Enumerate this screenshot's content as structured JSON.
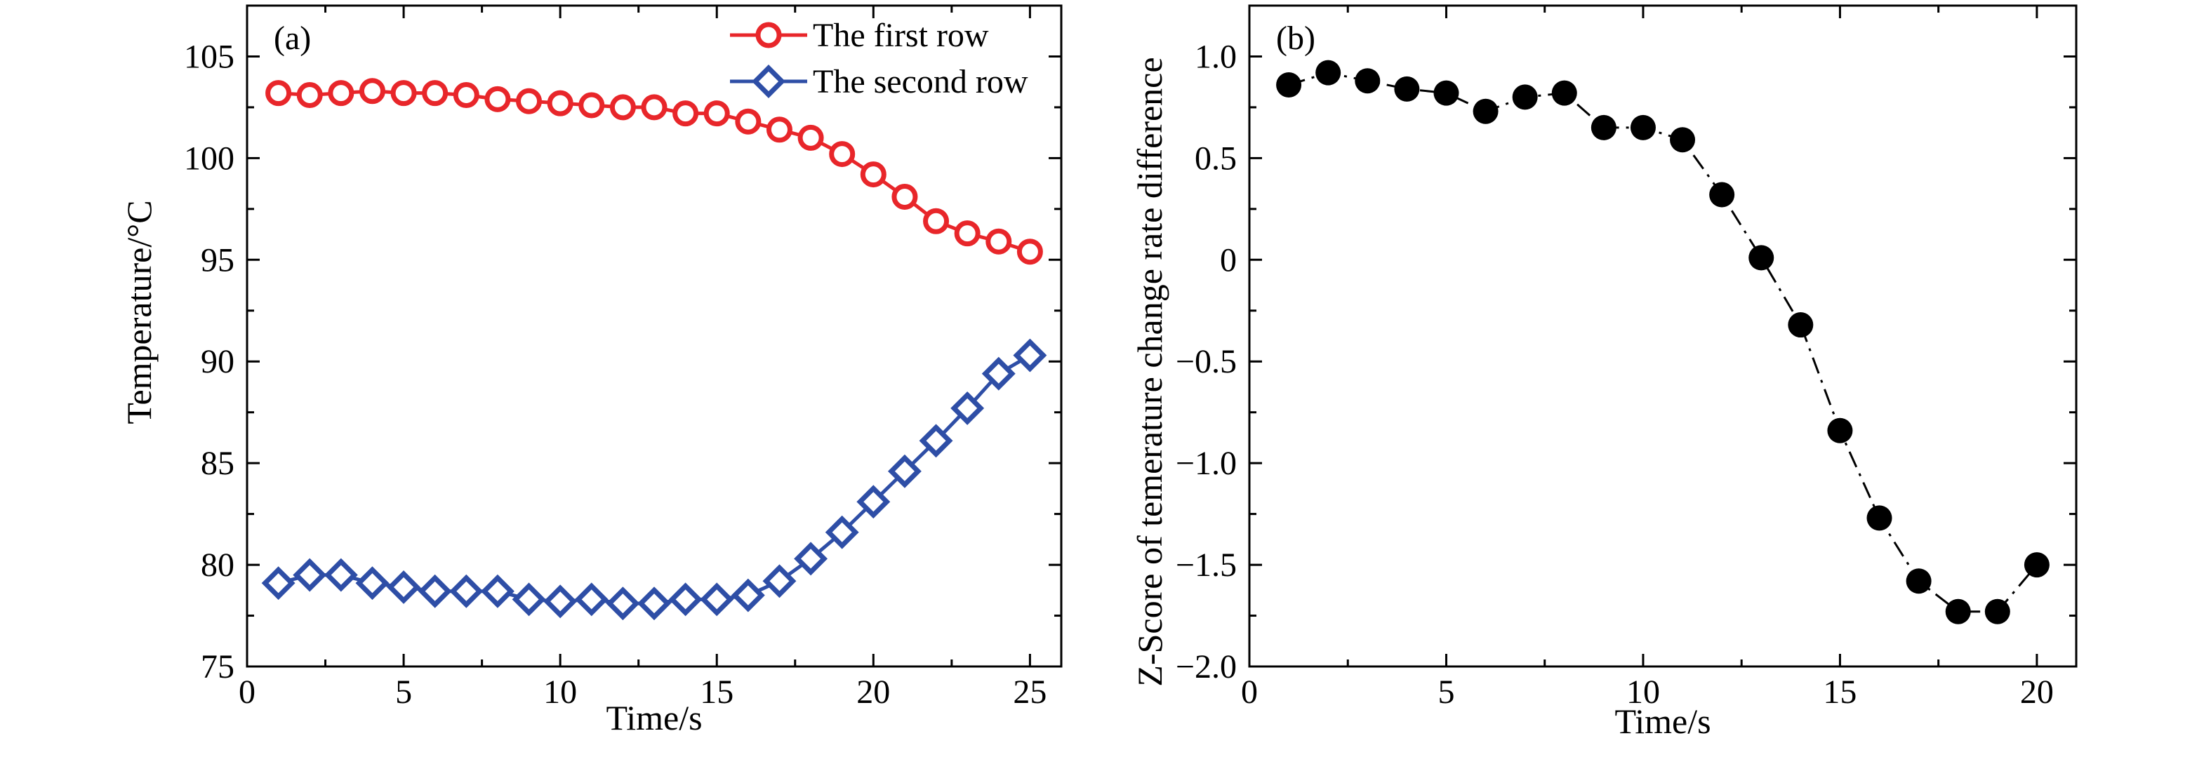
{
  "figure_title": "",
  "chart_data": [
    {
      "type": "line",
      "panel_label": "(a)",
      "xlabel": "Time/s",
      "ylabel": "Temperature/°C",
      "xlim": [
        0,
        26
      ],
      "ylim": [
        75,
        107.5
      ],
      "xticks": [
        "0",
        "5",
        "10",
        "15",
        "20",
        "25"
      ],
      "yticks": [
        "75",
        "80",
        "85",
        "90",
        "95",
        "100",
        "105"
      ],
      "xtick_values": [
        0,
        5,
        10,
        15,
        20,
        25
      ],
      "ytick_values": [
        75,
        80,
        85,
        90,
        95,
        100,
        105
      ],
      "grid": false,
      "legend_position": "top-right",
      "x": [
        1,
        2,
        3,
        4,
        5,
        6,
        7,
        8,
        9,
        10,
        11,
        12,
        13,
        14,
        15,
        16,
        17,
        18,
        19,
        20,
        21,
        22,
        23,
        24,
        25
      ],
      "series": [
        {
          "name": "The first row",
          "color": "#e8262a",
          "marker": "circle",
          "values": [
            103.2,
            103.1,
            103.2,
            103.3,
            103.2,
            103.2,
            103.1,
            102.9,
            102.8,
            102.7,
            102.6,
            102.5,
            102.5,
            102.2,
            102.2,
            101.8,
            101.4,
            101.0,
            100.2,
            99.2,
            98.1,
            96.9,
            96.3,
            95.9,
            95.4
          ]
        },
        {
          "name": "The second row",
          "color": "#2e4ea6",
          "marker": "diamond",
          "values": [
            79.1,
            79.5,
            79.5,
            79.1,
            78.9,
            78.7,
            78.7,
            78.7,
            78.3,
            78.2,
            78.3,
            78.1,
            78.1,
            78.3,
            78.3,
            78.5,
            79.2,
            80.3,
            81.6,
            83.1,
            84.6,
            86.1,
            87.7,
            89.4,
            90.3
          ]
        }
      ]
    },
    {
      "type": "line",
      "panel_label": "(b)",
      "xlabel": "Time/s",
      "ylabel": "Z-Score of temerature change rate difference",
      "xlim": [
        0,
        21
      ],
      "ylim": [
        -2.0,
        1.25
      ],
      "xticks": [
        "0",
        "5",
        "10",
        "15",
        "20"
      ],
      "yticks": [
        "−2.0",
        "−1.5",
        "−1.0",
        "−0.5",
        "0",
        "0.5",
        "1.0"
      ],
      "xtick_values": [
        0,
        5,
        10,
        15,
        20
      ],
      "ytick_values": [
        -2.0,
        -1.5,
        -1.0,
        -0.5,
        0,
        0.5,
        1.0
      ],
      "grid": false,
      "x": [
        1,
        2,
        3,
        4,
        5,
        6,
        7,
        8,
        9,
        10,
        11,
        12,
        13,
        14,
        15,
        16,
        17,
        18,
        19,
        20
      ],
      "series": [
        {
          "color": "#000000",
          "marker": "filled-circle",
          "line_style": "dashed",
          "values": [
            0.86,
            0.92,
            0.88,
            0.84,
            0.82,
            0.73,
            0.8,
            0.82,
            0.65,
            0.65,
            0.59,
            0.32,
            0.01,
            -0.32,
            -0.84,
            -1.27,
            -1.58,
            -1.73,
            -1.73,
            -1.5
          ]
        }
      ]
    }
  ]
}
